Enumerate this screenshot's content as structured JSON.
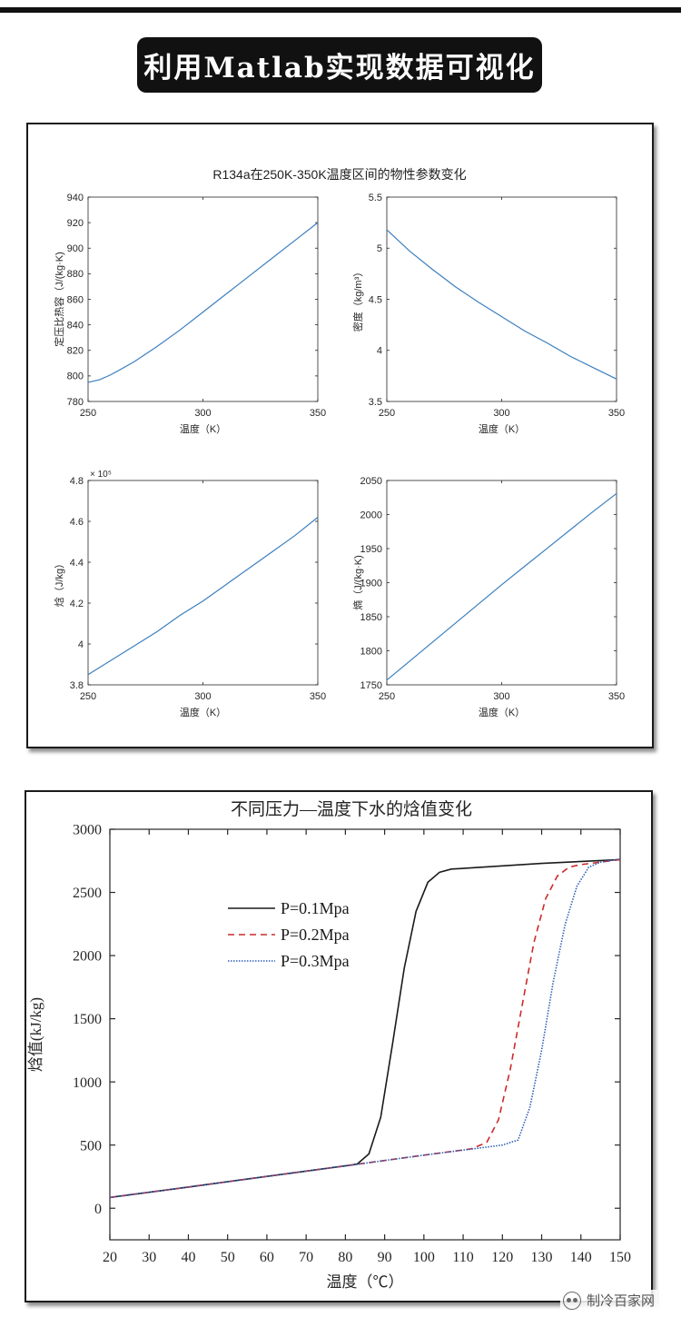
{
  "banner": {
    "title": "利用Matlab实现数据可视化"
  },
  "figure1": {
    "suptitle": "R134a在250K-350K温度区间的物性参数变化",
    "line_color": "#3b7fbf"
  },
  "figure2": {
    "title": "不同压力—温度下水的焓值变化"
  },
  "watermark": {
    "text": "制冷百家网"
  },
  "chart_data": [
    {
      "type": "line",
      "title": "",
      "xlabel": "温度（K）",
      "ylabel": "定压比热容（J/(kg·K)",
      "xlim": [
        250,
        350
      ],
      "ylim": [
        780,
        940
      ],
      "xticks": [
        "250",
        "300",
        "350"
      ],
      "yticks": [
        "780",
        "800",
        "820",
        "840",
        "860",
        "880",
        "900",
        "920",
        "940"
      ],
      "x": [
        250,
        255,
        260,
        270,
        280,
        290,
        300,
        310,
        320,
        330,
        340,
        350
      ],
      "y": [
        795,
        797,
        801,
        811,
        823,
        836,
        850,
        864,
        878,
        892,
        906,
        920
      ]
    },
    {
      "type": "line",
      "title": "",
      "xlabel": "温度（K）",
      "ylabel": "密度（kg/m³）",
      "xlim": [
        250,
        350
      ],
      "ylim": [
        3.5,
        5.5
      ],
      "xticks": [
        "250",
        "300",
        "350"
      ],
      "yticks": [
        "3.5",
        "4",
        "4.5",
        "5",
        "5.5"
      ],
      "x": [
        250,
        260,
        270,
        280,
        290,
        300,
        310,
        320,
        330,
        340,
        350
      ],
      "y": [
        5.18,
        4.97,
        4.79,
        4.62,
        4.47,
        4.33,
        4.19,
        4.07,
        3.94,
        3.83,
        3.72
      ]
    },
    {
      "type": "line",
      "title": "",
      "xlabel": "温度（K）",
      "ylabel": "焓（J/kg）",
      "y_multiplier": "× 10⁵",
      "xlim": [
        250,
        350
      ],
      "ylim": [
        3.8,
        4.8
      ],
      "xticks": [
        "250",
        "300",
        "350"
      ],
      "yticks": [
        "3.8",
        "4",
        "4.2",
        "4.4",
        "4.6",
        "4.8"
      ],
      "x": [
        250,
        260,
        270,
        280,
        290,
        300,
        310,
        320,
        330,
        340,
        350
      ],
      "y": [
        3.85,
        3.92,
        3.99,
        4.06,
        4.14,
        4.21,
        4.29,
        4.37,
        4.45,
        4.53,
        4.62
      ]
    },
    {
      "type": "line",
      "title": "",
      "xlabel": "温度（K）",
      "ylabel": "熵（J/(kg·K)",
      "xlim": [
        250,
        350
      ],
      "ylim": [
        1750,
        2050
      ],
      "xticks": [
        "250",
        "300",
        "350"
      ],
      "yticks": [
        "1750",
        "1800",
        "1850",
        "1900",
        "1950",
        "2000",
        "2050"
      ],
      "x": [
        250,
        260,
        270,
        280,
        290,
        300,
        310,
        320,
        330,
        340,
        350
      ],
      "y": [
        1757,
        1785,
        1813,
        1841,
        1869,
        1897,
        1924,
        1951,
        1978,
        2005,
        2031
      ]
    },
    {
      "type": "line",
      "title": "不同压力—温度下水的焓值变化",
      "xlabel": "温度（℃）",
      "ylabel": "焓值(kJ/kg)",
      "xlim": [
        20,
        150
      ],
      "ylim": [
        -250,
        3000
      ],
      "xticks": [
        "20",
        "30",
        "40",
        "50",
        "60",
        "70",
        "80",
        "90",
        "100",
        "110",
        "120",
        "130",
        "140",
        "150"
      ],
      "yticks": [
        "0",
        "500",
        "1000",
        "1500",
        "2000",
        "2500",
        "3000"
      ],
      "legend_placement": "upper-left",
      "series": [
        {
          "name": "P=0.1Mpa",
          "color": "#1a1a1a",
          "dash": "solid",
          "x": [
            20,
            40,
            60,
            80,
            83,
            86,
            89,
            92,
            95,
            98,
            101,
            104,
            107,
            110,
            130,
            150
          ],
          "y": [
            85,
            168,
            252,
            335,
            350,
            430,
            720,
            1300,
            1900,
            2350,
            2580,
            2660,
            2685,
            2690,
            2730,
            2760
          ]
        },
        {
          "name": "P=0.2Mpa",
          "color": "#cc2a2a",
          "dash": "dashed",
          "x": [
            20,
            40,
            60,
            80,
            100,
            112,
            116,
            119,
            122,
            125,
            128,
            131,
            134,
            137,
            140,
            150
          ],
          "y": [
            85,
            168,
            252,
            335,
            420,
            470,
            520,
            700,
            1100,
            1600,
            2100,
            2450,
            2630,
            2700,
            2720,
            2760
          ]
        },
        {
          "name": "P=0.3Mpa",
          "color": "#2f5fb8",
          "dash": "dotted",
          "x": [
            20,
            40,
            60,
            80,
            100,
            120,
            124,
            127,
            130,
            133,
            136,
            139,
            142,
            145,
            148,
            150
          ],
          "y": [
            85,
            168,
            252,
            335,
            420,
            500,
            540,
            800,
            1250,
            1800,
            2250,
            2550,
            2700,
            2740,
            2755,
            2765
          ]
        }
      ]
    }
  ]
}
